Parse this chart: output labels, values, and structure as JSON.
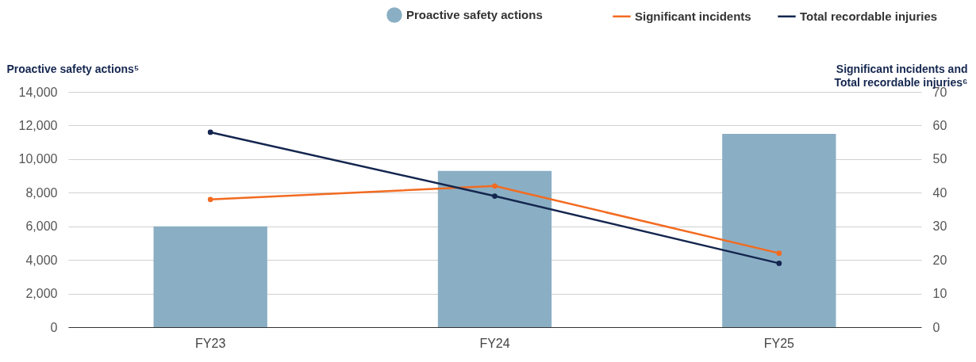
{
  "chart_data": {
    "type": "bar",
    "categories": [
      "FY23",
      "FY24",
      "FY25"
    ],
    "ylabel": "Proactive safety actions⁵",
    "y2label": "Significant incidents and\nTotal recordable injuries⁶",
    "ylim": [
      0,
      14000
    ],
    "yticks": [
      0,
      {
        "value": 2000,
        "label": "2,000"
      },
      {
        "value": 4000,
        "label": "4,000"
      },
      {
        "value": 6000,
        "label": "6,000"
      },
      {
        "value": 8000,
        "label": "8,000"
      },
      {
        "value": 10000,
        "label": "10,000"
      },
      {
        "value": 12000,
        "label": "12,000"
      },
      {
        "value": 14000,
        "label": "14,000"
      }
    ],
    "y2lim": [
      0,
      70
    ],
    "y2ticks": [
      0,
      10,
      20,
      30,
      40,
      50,
      60,
      70
    ],
    "grid": "y",
    "legend": "top right",
    "marker": "circle",
    "line_style": "solid",
    "series": [
      {
        "name": "Proactive safety actions",
        "color": "#8aafc4",
        "values": [
          6000,
          9300,
          11500
        ]
      },
      {
        "name": "Significant incidents",
        "type": "line",
        "axis": "y2",
        "color": "#f26b21",
        "values": [
          38,
          42,
          22
        ]
      },
      {
        "name": "Total recordable injuries",
        "type": "line",
        "axis": "y2",
        "color": "#14264f",
        "values": [
          58,
          39,
          19
        ]
      }
    ]
  }
}
